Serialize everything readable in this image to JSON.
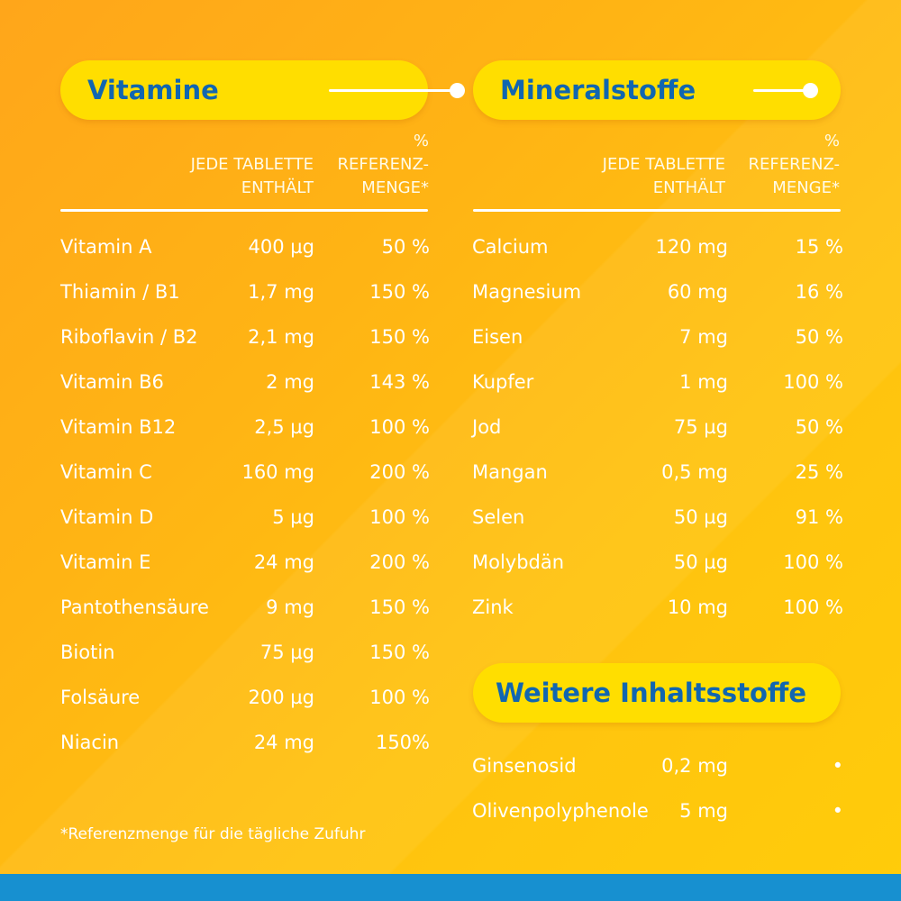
{
  "vitamins": {
    "title": "Vitamine",
    "col_amount": "JEDE TABLETTE\nENTHÄLT",
    "col_ref": "%\nREFERENZ-\nMENGE*",
    "rows": [
      {
        "name": "Vitamin A",
        "amount": "400 µg",
        "ref": "50 %"
      },
      {
        "name": "Thiamin / B1",
        "amount": "1,7 mg",
        "ref": "150 %"
      },
      {
        "name": "Riboflavin / B2",
        "amount": "2,1 mg",
        "ref": "150 %"
      },
      {
        "name": "Vitamin B6",
        "amount": "2 mg",
        "ref": "143 %"
      },
      {
        "name": "Vitamin B12",
        "amount": "2,5 µg",
        "ref": "100 %"
      },
      {
        "name": "Vitamin C",
        "amount": "160 mg",
        "ref": "200 %"
      },
      {
        "name": "Vitamin D",
        "amount": "5 µg",
        "ref": "100 %"
      },
      {
        "name": "Vitamin E",
        "amount": "24 mg",
        "ref": "200 %"
      },
      {
        "name": "Pantothensäure",
        "amount": "9 mg",
        "ref": "150 %"
      },
      {
        "name": "Biotin",
        "amount": "75 µg",
        "ref": "150 %"
      },
      {
        "name": "Folsäure",
        "amount": "200 µg",
        "ref": "100 %"
      },
      {
        "name": "Niacin",
        "amount": "24 mg",
        "ref": "150%"
      }
    ]
  },
  "minerals": {
    "title": "Mineralstoffe",
    "col_amount": "JEDE TABLETTE\nENTHÄLT",
    "col_ref": "%\nREFERENZ-\nMENGE*",
    "rows": [
      {
        "name": "Calcium",
        "amount": "120 mg",
        "ref": "15 %"
      },
      {
        "name": "Magnesium",
        "amount": "60 mg",
        "ref": "16 %"
      },
      {
        "name": "Eisen",
        "amount": "7 mg",
        "ref": "50 %"
      },
      {
        "name": "Kupfer",
        "amount": "1 mg",
        "ref": "100 %"
      },
      {
        "name": "Jod",
        "amount": "75 µg",
        "ref": "50 %"
      },
      {
        "name": "Mangan",
        "amount": "0,5 mg",
        "ref": "25 %"
      },
      {
        "name": "Selen",
        "amount": "50 µg",
        "ref": "91 %"
      },
      {
        "name": "Molybdän",
        "amount": "50 µg",
        "ref": "100 %"
      },
      {
        "name": "Zink",
        "amount": "10 mg",
        "ref": "100 %"
      }
    ]
  },
  "other": {
    "title": "Weitere Inhaltsstoffe",
    "rows": [
      {
        "name": "Ginsenosid",
        "amount": "0,2 mg",
        "ref": "•"
      },
      {
        "name": "Olivenpolyphenole",
        "amount": "5 mg",
        "ref": "•"
      }
    ]
  },
  "footnote": "*Referenzmenge für die tägliche Zufuhr",
  "colors": {
    "background_start": "#ffa61a",
    "background_end": "#ffcc0a",
    "pill": "#ffde00",
    "title_text": "#1166b0",
    "text": "#ffffff",
    "bottom_bar": "#1790d0"
  }
}
